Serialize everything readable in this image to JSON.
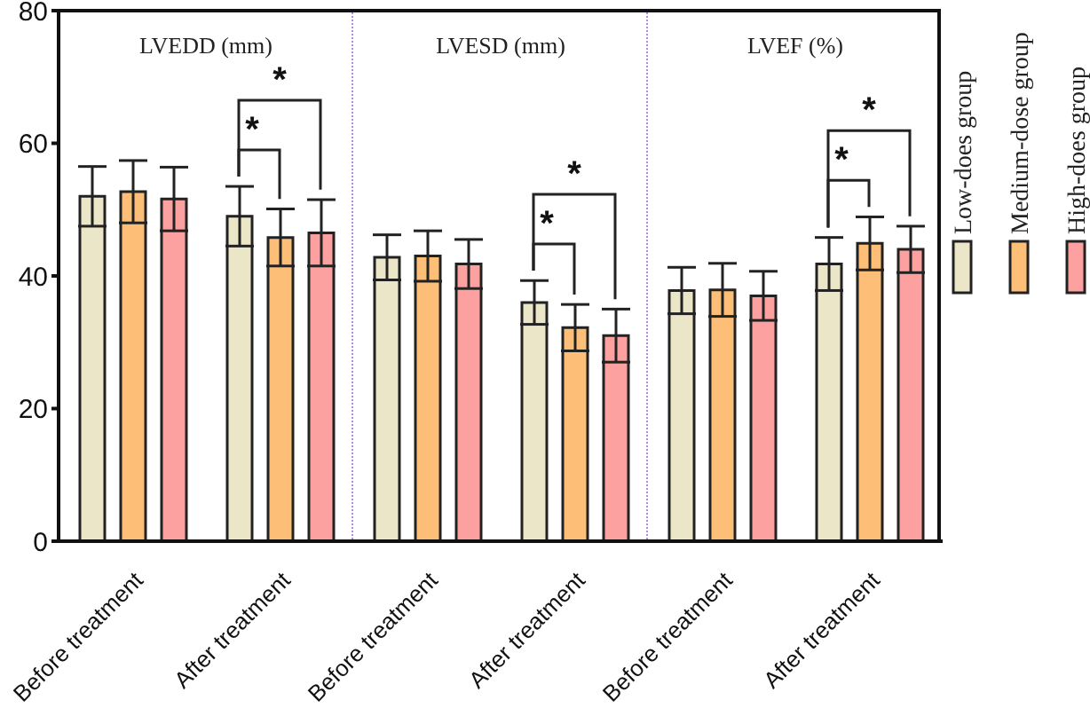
{
  "chart_data": [
    {
      "type": "bar",
      "title": "LVEDD (mm)",
      "categories": [
        "Before treatment",
        "After treatment"
      ],
      "series": [
        {
          "color": "#ece6c8",
          "values": [
            52,
            49
          ],
          "errors": [
            4.5,
            4.5
          ]
        },
        {
          "color": "#fdbf78",
          "values": [
            52.7,
            45.8
          ],
          "errors": [
            4.7,
            4.3
          ]
        },
        {
          "color": "#fca0a0",
          "values": [
            51.6,
            46.5
          ],
          "errors": [
            4.8,
            5
          ]
        }
      ],
      "ylim": [
        0,
        80
      ],
      "yticks": [
        0,
        20,
        40,
        60,
        80
      ],
      "grid": false,
      "annotations": [
        "*",
        "*"
      ]
    },
    {
      "type": "bar",
      "title": "LVESD (mm)",
      "categories": [
        "Before treatment",
        "After treatment"
      ],
      "series": [
        {
          "color": "#ece6c8",
          "values": [
            42.8,
            36
          ],
          "errors": [
            3.4,
            3.3
          ]
        },
        {
          "color": "#fdbf78",
          "values": [
            43,
            32.2
          ],
          "errors": [
            3.8,
            3.5
          ]
        },
        {
          "color": "#fca0a0",
          "values": [
            41.8,
            31
          ],
          "errors": [
            3.7,
            4
          ]
        }
      ],
      "ylim": [
        0,
        80
      ],
      "tick_labels": "x",
      "grid": false,
      "annotations": [
        "*",
        "*"
      ]
    },
    {
      "type": "bar",
      "title": "LVEF (%)",
      "categories": [
        "Before treatment",
        "After treatment"
      ],
      "series": [
        {
          "name": "Low-does group",
          "color": "#ece6c8",
          "values": [
            37.8,
            41.8
          ],
          "errors": [
            3.5,
            4
          ]
        },
        {
          "name": "Medium-dose group",
          "color": "#fdbf78",
          "values": [
            37.9,
            44.9
          ],
          "errors": [
            4,
            4
          ]
        },
        {
          "name": "High-does group",
          "color": "#fca0a0",
          "values": [
            37,
            44
          ],
          "errors": [
            3.7,
            3.5
          ]
        }
      ],
      "ylim": [
        0,
        80
      ],
      "tick_labels": "x",
      "grid": false,
      "legend": "right",
      "annotations": [
        "*",
        "*"
      ]
    }
  ]
}
